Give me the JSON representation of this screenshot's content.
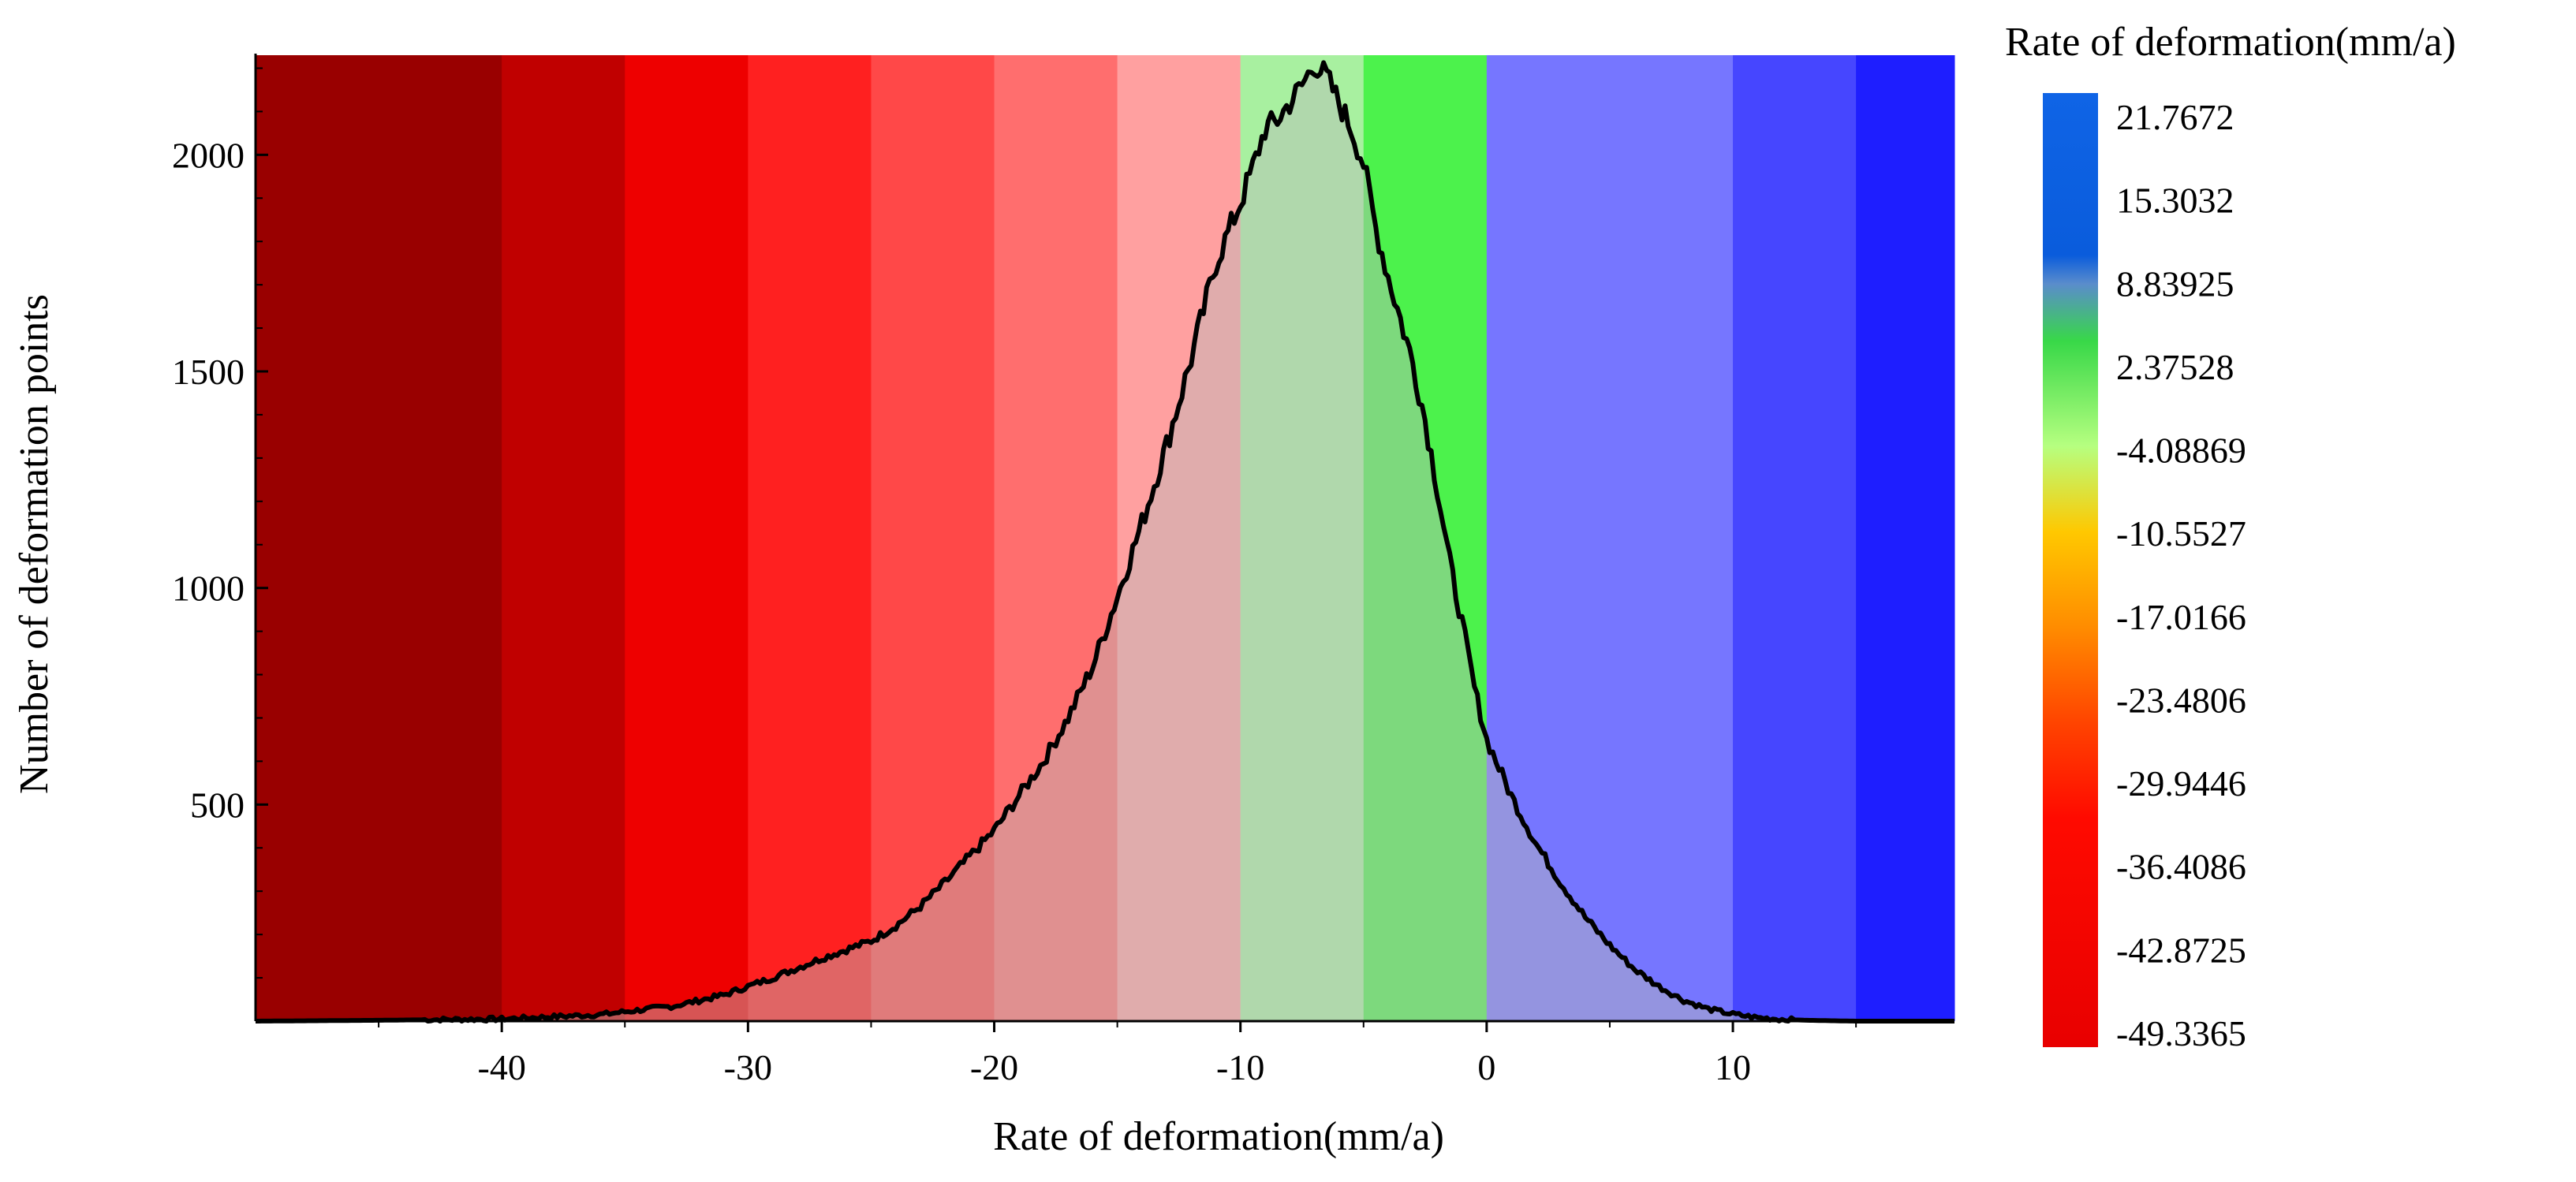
{
  "chart_data": {
    "type": "area",
    "xlabel": "Rate of deformation(mm/a)",
    "ylabel": "Number of deformation points",
    "xlim": [
      -50,
      19
    ],
    "ylim": [
      0,
      2230
    ],
    "x_ticks": [
      -40,
      -30,
      -20,
      -10,
      0,
      10
    ],
    "x_tick_labels": [
      "-40",
      "-30",
      "-20",
      "-10",
      "0",
      "10"
    ],
    "y_ticks": [
      500,
      1000,
      1500,
      2000
    ],
    "y_tick_labels": [
      "500",
      "1000",
      "1500",
      "2000"
    ],
    "grid": false,
    "background_bands": [
      {
        "from": -50,
        "to": -40,
        "color": "#990000"
      },
      {
        "from": -40,
        "to": -35,
        "color": "#c00000"
      },
      {
        "from": -35,
        "to": -30,
        "color": "#ee0000"
      },
      {
        "from": -30,
        "to": -25,
        "color": "#ff2020"
      },
      {
        "from": -25,
        "to": -20,
        "color": "#ff4848"
      },
      {
        "from": -20,
        "to": -15,
        "color": "#ff6e6e"
      },
      {
        "from": -15,
        "to": -10,
        "color": "#ffa0a0"
      },
      {
        "from": -10,
        "to": -5,
        "color": "#a8f0a0"
      },
      {
        "from": -5,
        "to": 0,
        "color": "#4cf24c"
      },
      {
        "from": 0,
        "to": 10,
        "color": "#7676ff"
      },
      {
        "from": 10,
        "to": 15,
        "color": "#4646ff"
      },
      {
        "from": 15,
        "to": 19,
        "color": "#1e1eff"
      }
    ],
    "series": [
      {
        "line_color": "#000000",
        "fill_color": "#bbbbbb",
        "x": [
          -50,
          -45,
          -40,
          -36,
          -33,
          -31,
          -29,
          -27,
          -25,
          -24,
          -23,
          -22,
          -21,
          -20,
          -19,
          -18,
          -17,
          -16,
          -15,
          -14,
          -13,
          -12,
          -11,
          -10,
          -9.5,
          -9,
          -8.5,
          -8,
          -7.5,
          -7,
          -6.5,
          -6,
          -5.5,
          -5,
          -4.5,
          -4,
          -3.5,
          -3,
          -2.5,
          -2,
          -1.5,
          -1,
          -0.5,
          0,
          1,
          2,
          3,
          4,
          5,
          6,
          7,
          8,
          9,
          10,
          11,
          12,
          13,
          15,
          19
        ],
        "y": [
          0,
          2,
          5,
          15,
          35,
          60,
          100,
          145,
          185,
          220,
          265,
          320,
          380,
          440,
          520,
          600,
          700,
          820,
          980,
          1150,
          1330,
          1530,
          1750,
          1890,
          1970,
          2060,
          2080,
          2120,
          2160,
          2210,
          2180,
          2120,
          2060,
          1980,
          1830,
          1720,
          1620,
          1520,
          1390,
          1230,
          1060,
          920,
          770,
          650,
          520,
          410,
          320,
          240,
          175,
          120,
          80,
          48,
          28,
          16,
          8,
          4,
          2,
          0,
          0
        ]
      }
    ],
    "colorbar": {
      "title": "Rate of deformation(mm/a)",
      "labels": [
        "21.7672",
        "15.3032",
        "8.83925",
        "2.37528",
        "-4.08869",
        "-10.5527",
        "-17.0166",
        "-23.4806",
        "-29.9446",
        "-36.4086",
        "-42.8725",
        "-49.3365"
      ],
      "gradient": [
        {
          "stop": 0.0,
          "color": "#0f64e6"
        },
        {
          "stop": 0.17,
          "color": "#0a5cdc"
        },
        {
          "stop": 0.2,
          "color": "#5a8ccc"
        },
        {
          "stop": 0.26,
          "color": "#38d848"
        },
        {
          "stop": 0.37,
          "color": "#b6ff80"
        },
        {
          "stop": 0.46,
          "color": "#ffc800"
        },
        {
          "stop": 0.56,
          "color": "#ff8c00"
        },
        {
          "stop": 0.66,
          "color": "#ff4400"
        },
        {
          "stop": 0.76,
          "color": "#ff0a00"
        },
        {
          "stop": 1.0,
          "color": "#e80000"
        }
      ]
    }
  }
}
